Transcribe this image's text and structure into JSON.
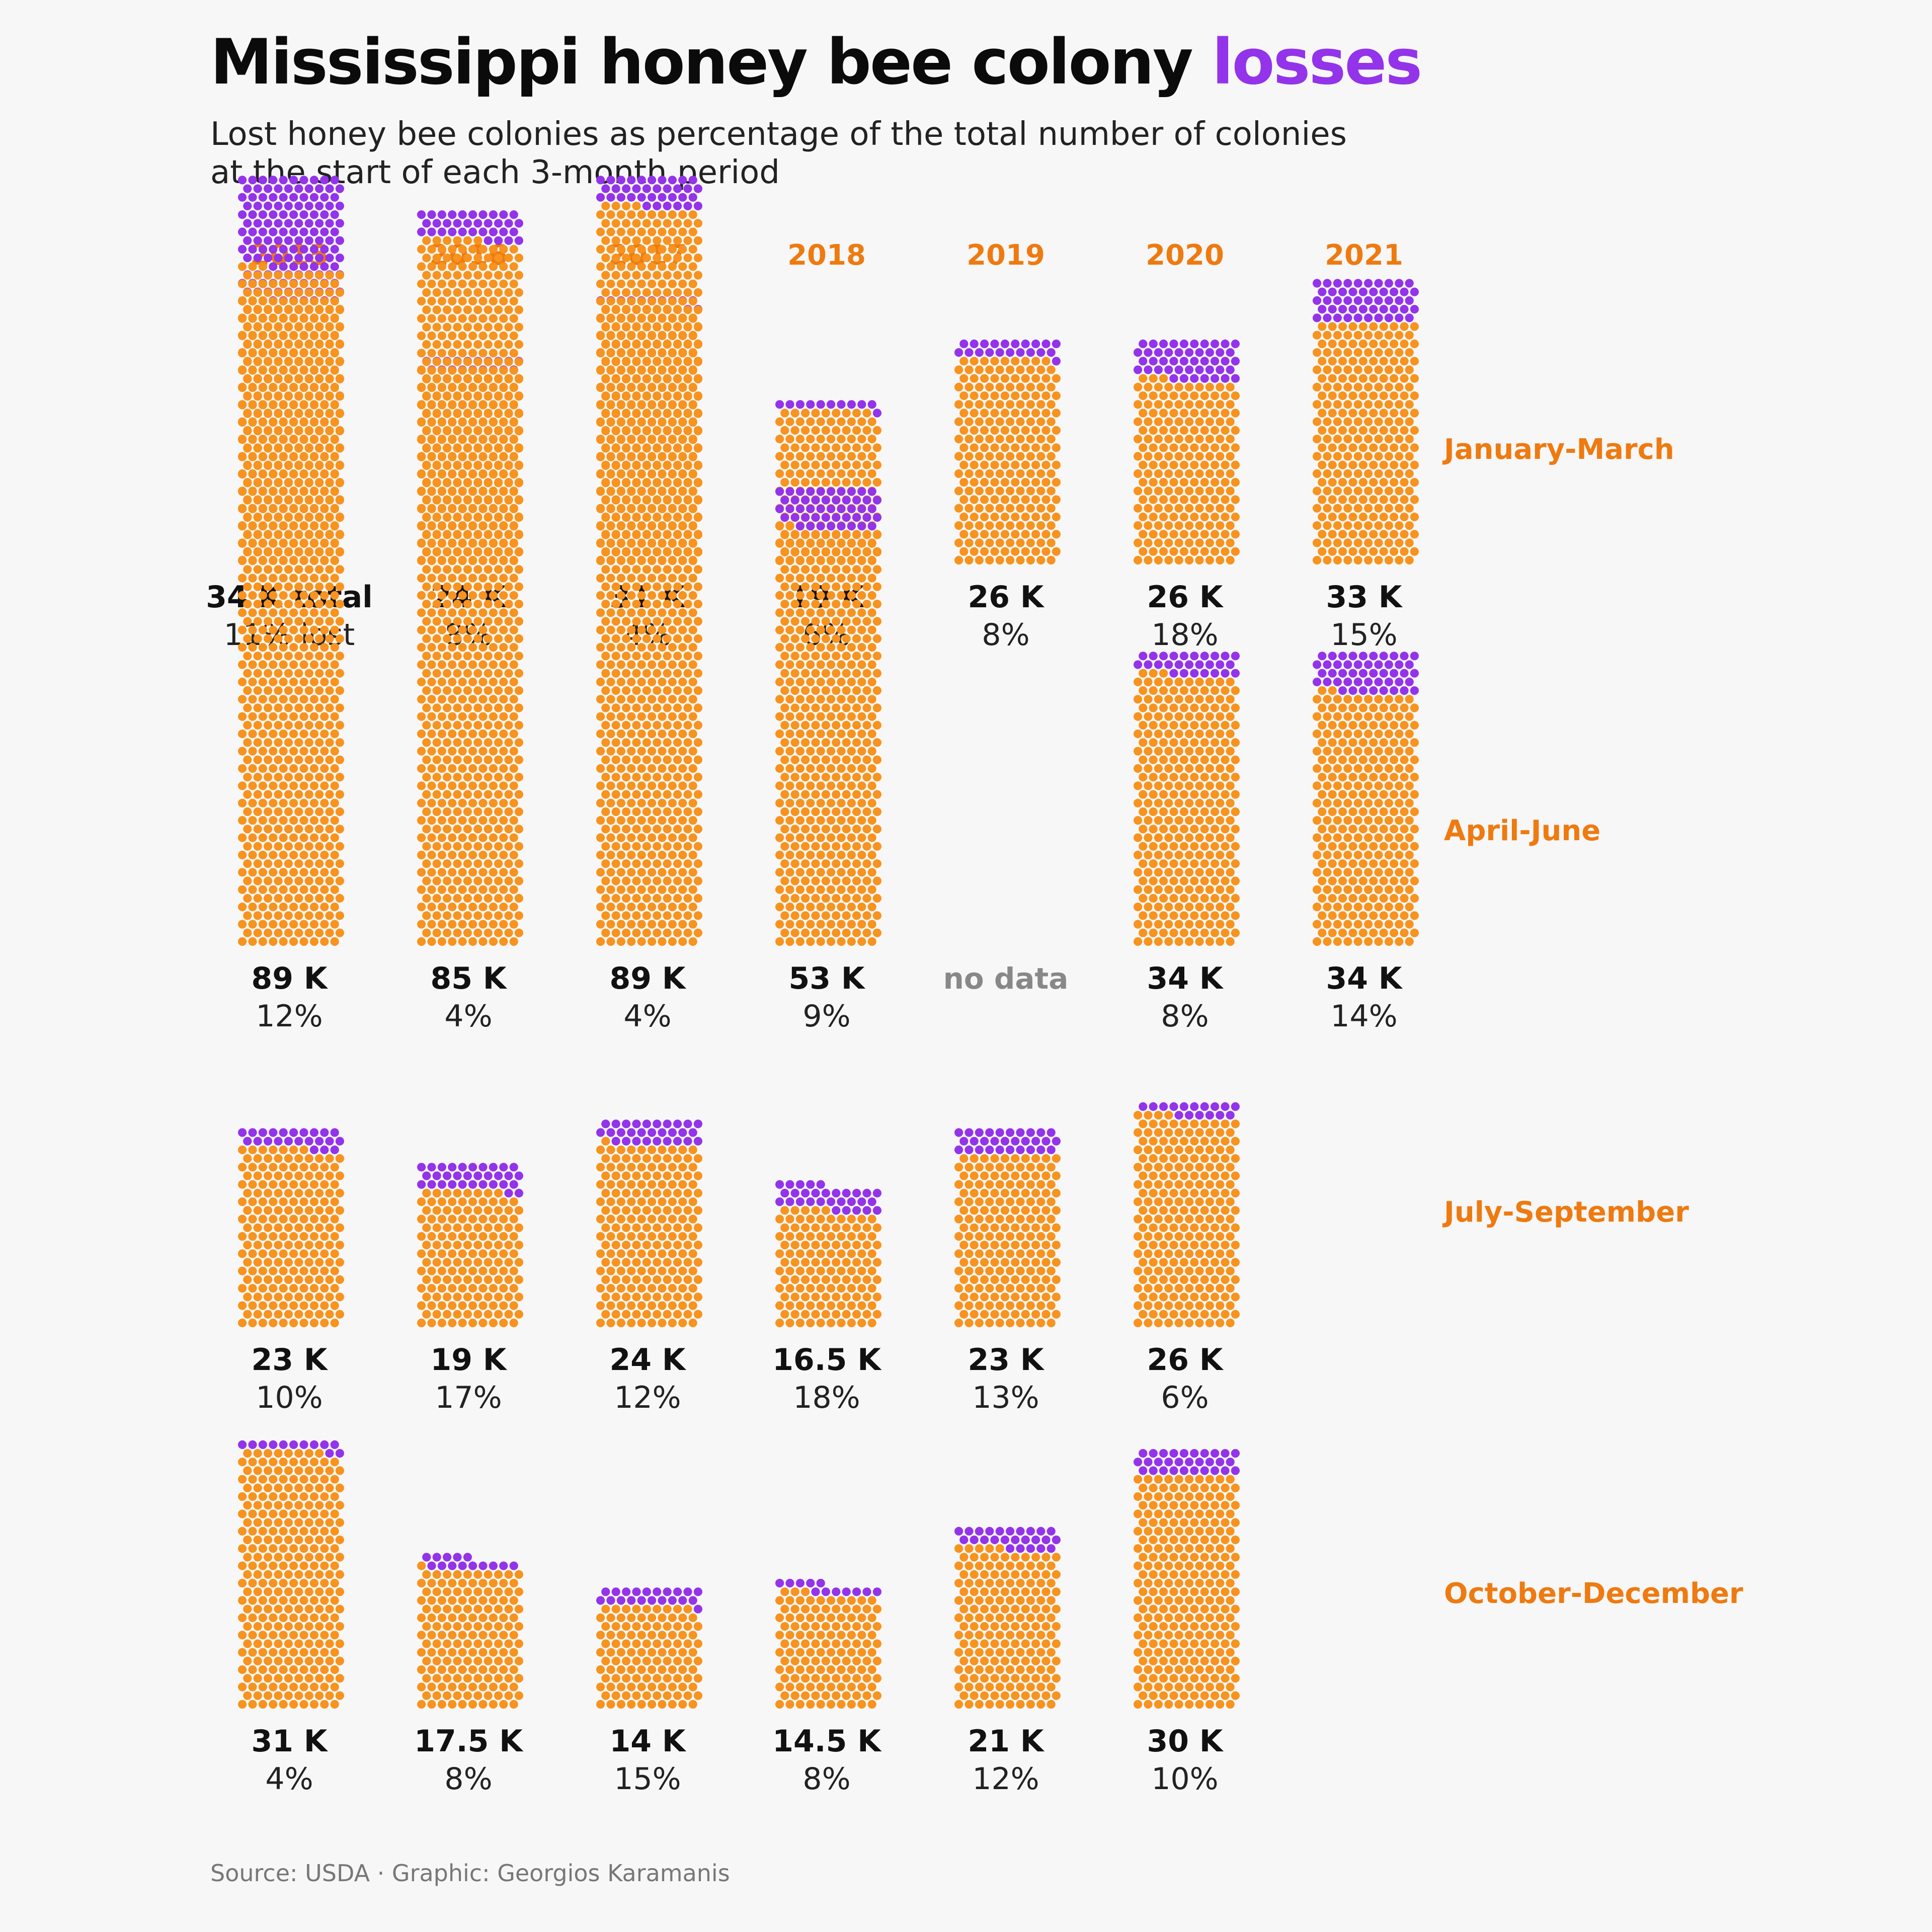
{
  "title": {
    "main": "Mississippi honey bee colony ",
    "accent": "losses"
  },
  "subtitle": [
    "Lost honey bee colonies as percentage of the total number of colonies",
    "at the start of each 3-month period"
  ],
  "source": "Source: USDA · Graphic: Georgios Karamanis",
  "colors": {
    "healthy": "#f7931e",
    "lost": "#9333ea",
    "label_accent": "#ee7a10",
    "text": "#111111",
    "missing": "#888888"
  },
  "chart_data": {
    "type": "waffle",
    "title": "Mississippi honey bee colony losses",
    "unit_note": "each column: total colonies at start of period (thousands) with share lost",
    "years": [
      "2015",
      "2016",
      "2017",
      "2018",
      "2019",
      "2020",
      "2021"
    ],
    "periods": [
      "January-March",
      "April-June",
      "July-September",
      "October-December"
    ],
    "no_data_label": "no data",
    "first_total_suffix": " total",
    "first_pct_suffix": " lost",
    "cells": [
      [
        {
          "total": 34,
          "total_label": "34 K",
          "lost_pct": 11
        },
        {
          "total": 24,
          "total_label": "24 K",
          "lost_pct": 8
        },
        {
          "total": 31,
          "total_label": "31 K",
          "lost_pct": 4
        },
        {
          "total": 19,
          "total_label": "19 K",
          "lost_pct": 6
        },
        {
          "total": 26,
          "total_label": "26 K",
          "lost_pct": 8
        },
        {
          "total": 26,
          "total_label": "26 K",
          "lost_pct": 18
        },
        {
          "total": 33,
          "total_label": "33 K",
          "lost_pct": 15
        }
      ],
      [
        {
          "total": 89,
          "total_label": "89 K",
          "lost_pct": 12
        },
        {
          "total": 85,
          "total_label": "85 K",
          "lost_pct": 4
        },
        {
          "total": 89,
          "total_label": "89 K",
          "lost_pct": 4
        },
        {
          "total": 53,
          "total_label": "53 K",
          "lost_pct": 9
        },
        null,
        {
          "total": 34,
          "total_label": "34 K",
          "lost_pct": 8
        },
        {
          "total": 34,
          "total_label": "34 K",
          "lost_pct": 14
        }
      ],
      [
        {
          "total": 23,
          "total_label": "23 K",
          "lost_pct": 10
        },
        {
          "total": 19,
          "total_label": "19 K",
          "lost_pct": 17
        },
        {
          "total": 24,
          "total_label": "24 K",
          "lost_pct": 12
        },
        {
          "total": 16.5,
          "total_label": "16.5 K",
          "lost_pct": 18
        },
        {
          "total": 23,
          "total_label": "23 K",
          "lost_pct": 13
        },
        {
          "total": 26,
          "total_label": "26 K",
          "lost_pct": 6
        }
      ],
      [
        {
          "total": 31,
          "total_label": "31 K",
          "lost_pct": 4
        },
        {
          "total": 17.5,
          "total_label": "17.5 K",
          "lost_pct": 8
        },
        {
          "total": 14,
          "total_label": "14 K",
          "lost_pct": 15
        },
        {
          "total": 14.5,
          "total_label": "14.5 K",
          "lost_pct": 8
        },
        {
          "total": 21,
          "total_label": "21 K",
          "lost_pct": 12
        },
        {
          "total": 30,
          "total_label": "30 K",
          "lost_pct": 10
        }
      ]
    ]
  }
}
